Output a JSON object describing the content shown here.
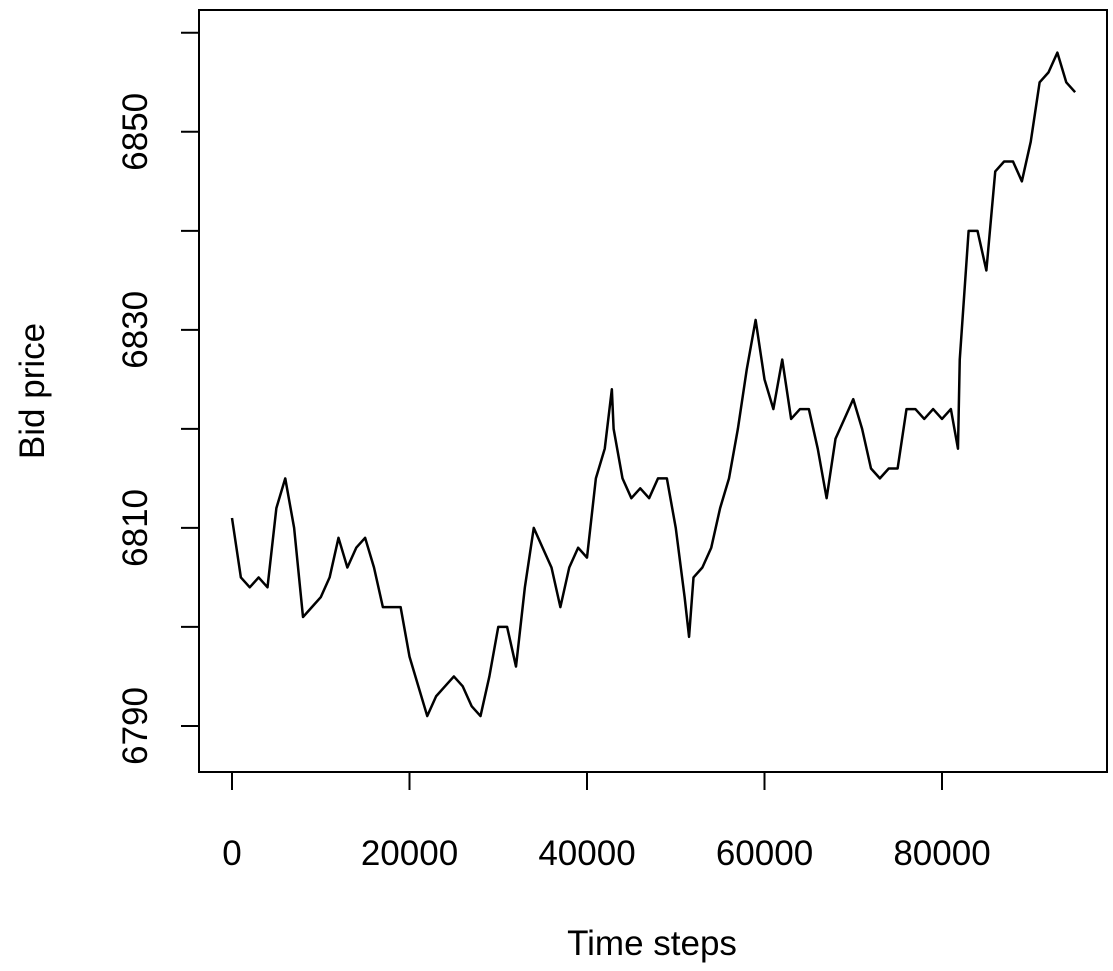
{
  "chart_data": {
    "type": "line",
    "xlabel": "Time steps",
    "ylabel": "Bid price",
    "color": "#000000",
    "x": [
      0,
      1000,
      2000,
      3000,
      4000,
      5000,
      6000,
      7000,
      8000,
      9000,
      10000,
      11000,
      12000,
      13000,
      14000,
      15000,
      16000,
      17000,
      18000,
      19000,
      20000,
      21000,
      22000,
      23000,
      24000,
      25000,
      26000,
      27000,
      28000,
      29000,
      30000,
      31000,
      32000,
      33000,
      34000,
      35000,
      36000,
      37000,
      38000,
      39000,
      40000,
      41000,
      42000,
      42800,
      43000,
      44000,
      45000,
      46000,
      47000,
      48000,
      49000,
      50000,
      51000,
      51500,
      52000,
      53000,
      54000,
      55000,
      56000,
      57000,
      58000,
      59000,
      60000,
      61000,
      62000,
      63000,
      64000,
      65000,
      66000,
      67000,
      68000,
      69000,
      70000,
      71000,
      72000,
      73000,
      74000,
      75000,
      76000,
      77000,
      78000,
      79000,
      80000,
      81000,
      81800,
      82000,
      83000,
      84000,
      85000,
      86000,
      87000,
      88000,
      89000,
      90000,
      91000,
      92000,
      93000,
      94000,
      95000
    ],
    "values": [
      6811,
      6805,
      6804,
      6805,
      6804,
      6812,
      6815,
      6810,
      6801,
      6802,
      6803,
      6805,
      6809,
      6806,
      6808,
      6809,
      6806,
      6802,
      6802,
      6802,
      6797,
      6794,
      6791,
      6793,
      6794,
      6795,
      6794,
      6792,
      6791,
      6795,
      6800,
      6800,
      6796,
      6804,
      6810,
      6808,
      6806,
      6802,
      6806,
      6808,
      6807,
      6815,
      6818,
      6824,
      6820,
      6815,
      6813,
      6814,
      6813,
      6815,
      6815,
      6810,
      6803,
      6799,
      6805,
      6806,
      6808,
      6812,
      6815,
      6820,
      6826,
      6831,
      6825,
      6822,
      6827,
      6821,
      6822,
      6822,
      6818,
      6813,
      6819,
      6821,
      6823,
      6820,
      6816,
      6815,
      6816,
      6816,
      6822,
      6822,
      6821,
      6822,
      6821,
      6822,
      6818,
      6827,
      6840,
      6840,
      6836,
      6846,
      6847,
      6847,
      6845,
      6849,
      6855,
      6856,
      6858,
      6855,
      6854
    ],
    "xlim": [
      -3718,
      98592
    ],
    "ylim": [
      6785.35,
      6862.3
    ],
    "xticks": [
      0,
      20000,
      40000,
      60000,
      80000
    ],
    "yticks": [
      6790,
      6810,
      6830,
      6850
    ],
    "yminorticks": [
      6800,
      6820,
      6840,
      6860
    ]
  }
}
